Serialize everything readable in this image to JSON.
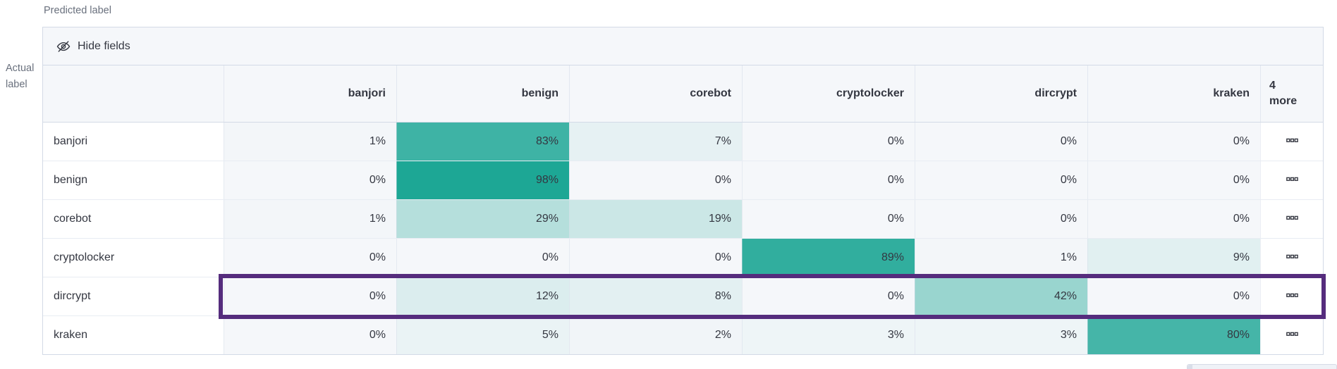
{
  "axis": {
    "predicted_label": "Predicted label",
    "actual_label_line1": "Actual",
    "actual_label_line2": "label"
  },
  "toolbar": {
    "hide_fields_label": "Hide fields",
    "icon": "eye-closed-icon"
  },
  "columns": [
    "banjori",
    "benign",
    "corebot",
    "cryptolocker",
    "dircrypt",
    "kraken"
  ],
  "more_column": {
    "line1": "4",
    "line2": "more",
    "icon": "boxes-horizontal-icon"
  },
  "rows": [
    {
      "label": "banjori",
      "values": [
        1,
        83,
        7,
        0,
        0,
        0
      ],
      "highlighted": false
    },
    {
      "label": "benign",
      "values": [
        0,
        98,
        0,
        0,
        0,
        0
      ],
      "highlighted": false
    },
    {
      "label": "corebot",
      "values": [
        1,
        29,
        19,
        0,
        0,
        0
      ],
      "highlighted": false
    },
    {
      "label": "cryptolocker",
      "values": [
        0,
        0,
        0,
        89,
        1,
        9
      ],
      "highlighted": false
    },
    {
      "label": "dircrypt",
      "values": [
        0,
        12,
        8,
        0,
        42,
        0
      ],
      "highlighted": true
    },
    {
      "label": "kraken",
      "values": [
        0,
        5,
        2,
        3,
        3,
        80
      ],
      "highlighted": false
    }
  ],
  "value_suffix": "%",
  "colors": {
    "heat_max": "#19a593",
    "heat_zero": "#f5f7fa",
    "highlight_border": "#552c7d",
    "table_border": "#d3dae6",
    "header_bg": "#f5f7fa",
    "text": "#343741",
    "muted_text": "#69707d"
  },
  "chart_data": {
    "type": "heatmap",
    "xlabel": "Predicted label",
    "ylabel": "Actual label",
    "x_categories": [
      "banjori",
      "benign",
      "corebot",
      "cryptolocker",
      "dircrypt",
      "kraken"
    ],
    "x_hidden_columns_note": "4 more",
    "y_categories": [
      "banjori",
      "benign",
      "corebot",
      "cryptolocker",
      "dircrypt",
      "kraken"
    ],
    "values_percent": [
      [
        1,
        83,
        7,
        0,
        0,
        0
      ],
      [
        0,
        98,
        0,
        0,
        0,
        0
      ],
      [
        1,
        29,
        19,
        0,
        0,
        0
      ],
      [
        0,
        0,
        0,
        89,
        1,
        9
      ],
      [
        0,
        12,
        8,
        0,
        42,
        0
      ],
      [
        0,
        5,
        2,
        3,
        3,
        80
      ]
    ],
    "highlighted_row": "dircrypt",
    "color_scale": {
      "min_color": "#f5f7fa",
      "max_color": "#19a593",
      "domain": [
        0,
        100
      ]
    }
  }
}
